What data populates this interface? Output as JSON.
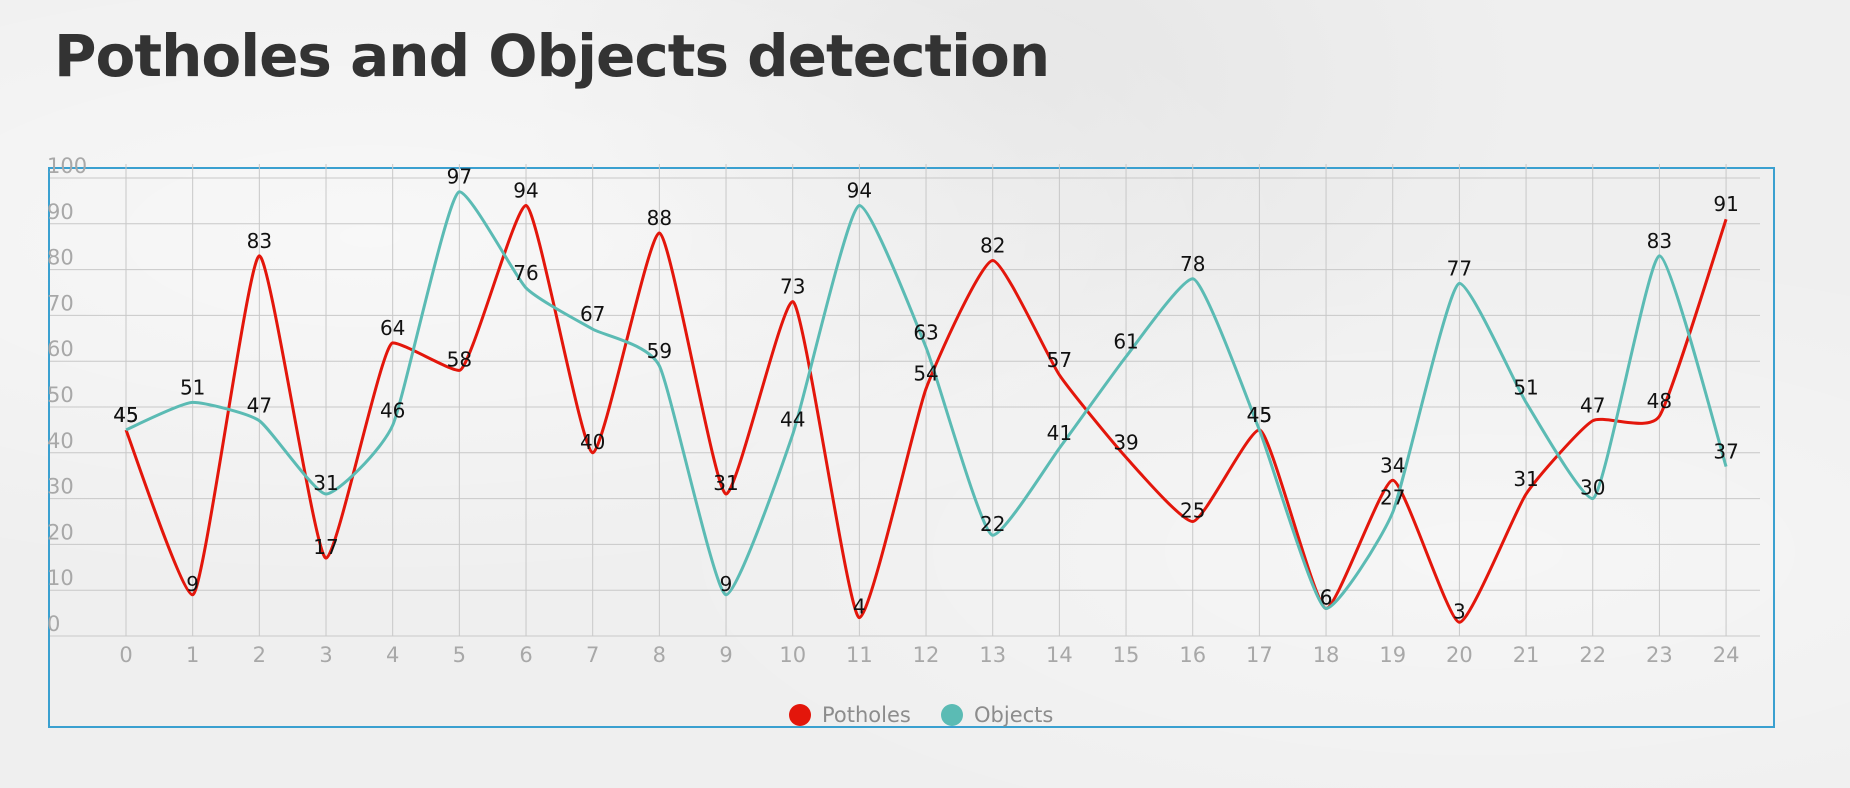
{
  "title": "Potholes and Objects detection",
  "chart_data": {
    "type": "line",
    "smooth": true,
    "x": [
      0,
      1,
      2,
      3,
      4,
      5,
      6,
      7,
      8,
      9,
      10,
      11,
      12,
      13,
      14,
      15,
      16,
      17,
      18,
      19,
      20,
      21,
      22,
      23,
      24
    ],
    "series": [
      {
        "name": "Potholes",
        "color": "#e3160b",
        "values": [
          45,
          9,
          83,
          17,
          64,
          58,
          94,
          40,
          88,
          31,
          73,
          4,
          54,
          82,
          57,
          39,
          25,
          45,
          6,
          34,
          3,
          31,
          47,
          48,
          91
        ]
      },
      {
        "name": "Objects",
        "color": "#5bbbb4",
        "values": [
          45,
          51,
          47,
          31,
          46,
          97,
          76,
          67,
          59,
          9,
          44,
          94,
          63,
          22,
          41,
          61,
          78,
          45,
          6,
          27,
          77,
          51,
          30,
          83,
          37
        ]
      }
    ],
    "ylim": [
      0,
      100
    ],
    "yticks": [
      0,
      10,
      20,
      30,
      40,
      50,
      60,
      70,
      80,
      90,
      100
    ],
    "xlabel": "",
    "ylabel": "",
    "grid": true,
    "legend": "bottom-center"
  }
}
